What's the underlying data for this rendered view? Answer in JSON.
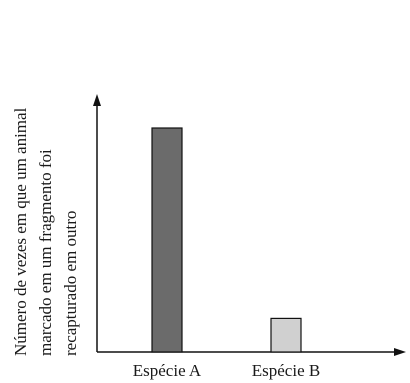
{
  "chart_data": {
    "type": "bar",
    "title": "",
    "xlabel": "",
    "ylabel_lines": [
      "Número de vezes em que um animal",
      "marcado em um fragmento foi",
      "recapturado em outro"
    ],
    "categories": [
      "Espécie A",
      "Espécie B"
    ],
    "values": [
      8,
      1.2
    ],
    "ylim": [
      0,
      10
    ],
    "y_ticks_shown": false,
    "grid": false,
    "legend": "none",
    "bar_colors": [
      "#6b6b6b",
      "#d0d0d0"
    ],
    "bar_stroke": "#111111",
    "axis_color": "#111111"
  }
}
